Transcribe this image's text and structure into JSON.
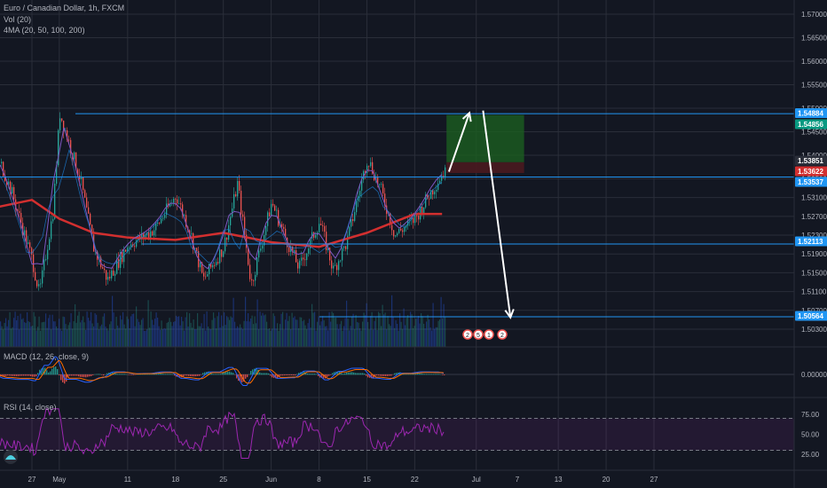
{
  "header": {
    "symbol_line": "Euro / Canadian Dollar, 1h, FXCM",
    "vol_label": "Vol (20)",
    "ma_label": "4MA (20, 50, 100, 200)"
  },
  "panes": {
    "macd_label": "MACD (12, 26, close, 9)",
    "rsi_label": "RSI (14, close)"
  },
  "colors": {
    "background": "#131722",
    "grid": "#2a2e39",
    "level_line": "#2196f3",
    "candle_up": "#26a69a",
    "candle_down": "#ef5350",
    "ma_red": "#d32f2f",
    "ma_purple": "#7e57c2",
    "rsi": "#9c27b0",
    "target_zone": "#1b5e20",
    "stop_zone": "#4a1a1f",
    "arrow": "#ffffff"
  },
  "chart_data": [
    {
      "type": "line",
      "title": "Euro / Canadian Dollar, 1h, FXCM",
      "price_axis_ticks": [
        "1.57000",
        "1.56500",
        "1.56000",
        "1.55500",
        "1.55000",
        "1.54500",
        "1.54000",
        "1.53500",
        "1.53100",
        "1.52700",
        "1.52300",
        "1.51900",
        "1.51500",
        "1.51100",
        "1.50700",
        "1.50300"
      ],
      "time_axis_ticks": [
        "27",
        "May",
        "11",
        "18",
        "25",
        "Jun",
        "8",
        "15",
        "22",
        "Jul",
        "13",
        "20",
        "27"
      ],
      "time_axis_dates": [
        "2020-04-27",
        "2020-05-01",
        "2020-05-11",
        "2020-05-18",
        "2020-05-25",
        "2020-06-01",
        "2020-06-08",
        "2020-06-15",
        "2020-06-22",
        "2020-07-01",
        "2020-07-13",
        "2020-07-20",
        "2020-07-27"
      ],
      "extra_time_ticks": [
        "7"
      ],
      "ylim": [
        1.5,
        1.572
      ],
      "horizontal_levels": [
        {
          "label": "1.54884",
          "value": 1.54884,
          "color": "#2196f3"
        },
        {
          "label": "1.53537",
          "value": 1.53537,
          "color": "#2196f3"
        },
        {
          "label": "1.52113",
          "value": 1.52113,
          "color": "#2196f3"
        },
        {
          "label": "1.50564",
          "value": 1.50564,
          "color": "#2196f3"
        }
      ],
      "price_tags": [
        {
          "label": "1.54884",
          "value": 1.54884,
          "color": "#2196f3"
        },
        {
          "label": "1.54856",
          "value": 1.54856,
          "color": "#089981"
        },
        {
          "label": "1.53851",
          "value": 1.53851,
          "color": "#2a2e39"
        },
        {
          "label": "1.53622",
          "value": 1.53622,
          "color": "#d32f2f"
        },
        {
          "label": "1.53537",
          "value": 1.53537,
          "color": "#2196f3"
        },
        {
          "label": "1.52113",
          "value": 1.52113,
          "color": "#2196f3"
        },
        {
          "label": "1.50564",
          "value": 1.50564,
          "color": "#2196f3"
        }
      ],
      "price_series": {
        "x": [
          "2020-04-22",
          "2020-04-24",
          "2020-04-27",
          "2020-04-28",
          "2020-04-30",
          "2020-05-01",
          "2020-05-04",
          "2020-05-06",
          "2020-05-08",
          "2020-05-11",
          "2020-05-13",
          "2020-05-15",
          "2020-05-18",
          "2020-05-20",
          "2020-05-22",
          "2020-05-25",
          "2020-05-27",
          "2020-05-29",
          "2020-06-01",
          "2020-06-03",
          "2020-06-05",
          "2020-06-08",
          "2020-06-10",
          "2020-06-12",
          "2020-06-15",
          "2020-06-17",
          "2020-06-19",
          "2020-06-22",
          "2020-06-24",
          "2020-06-26"
        ],
        "y": [
          1.5395,
          1.532,
          1.5175,
          1.5105,
          1.528,
          1.549,
          1.535,
          1.52,
          1.5135,
          1.521,
          1.5225,
          1.5245,
          1.5315,
          1.524,
          1.5135,
          1.5205,
          1.534,
          1.5125,
          1.53,
          1.5225,
          1.516,
          1.526,
          1.5155,
          1.5215,
          1.5395,
          1.5325,
          1.523,
          1.5265,
          1.5315,
          1.5362
        ]
      },
      "ma_red": {
        "x": [
          "2020-04-22",
          "2020-04-27",
          "2020-05-01",
          "2020-05-06",
          "2020-05-11",
          "2020-05-18",
          "2020-05-25",
          "2020-06-01",
          "2020-06-08",
          "2020-06-15",
          "2020-06-22",
          "2020-06-26"
        ],
        "y": [
          1.529,
          1.5305,
          1.5265,
          1.5235,
          1.5225,
          1.522,
          1.5235,
          1.5215,
          1.5205,
          1.5235,
          1.5275,
          1.5275
        ]
      },
      "target_zone": {
        "from": 1.53851,
        "to": 1.54856
      },
      "stop_zone": {
        "from": 1.53851,
        "to": 1.53622
      },
      "projection": [
        {
          "x": "2020-06-27",
          "y": 1.5365
        },
        {
          "x": "2020-06-30",
          "y": 1.549
        },
        {
          "x": "2020-07-02",
          "y": 1.5495
        },
        {
          "x": "2020-07-06",
          "y": 1.5055
        }
      ],
      "event_markers": [
        "2",
        "5",
        "1",
        "2"
      ]
    },
    {
      "type": "line",
      "title": "MACD (12, 26, close, 9)",
      "price_axis_ticks": [
        "0.00000"
      ],
      "ylim": [
        -0.004,
        0.004
      ]
    },
    {
      "type": "line",
      "title": "RSI (14, close)",
      "price_axis_ticks": [
        "75.00",
        "50.00",
        "25.00"
      ],
      "ylim": [
        15,
        85
      ],
      "levels": [
        70,
        30
      ]
    }
  ]
}
